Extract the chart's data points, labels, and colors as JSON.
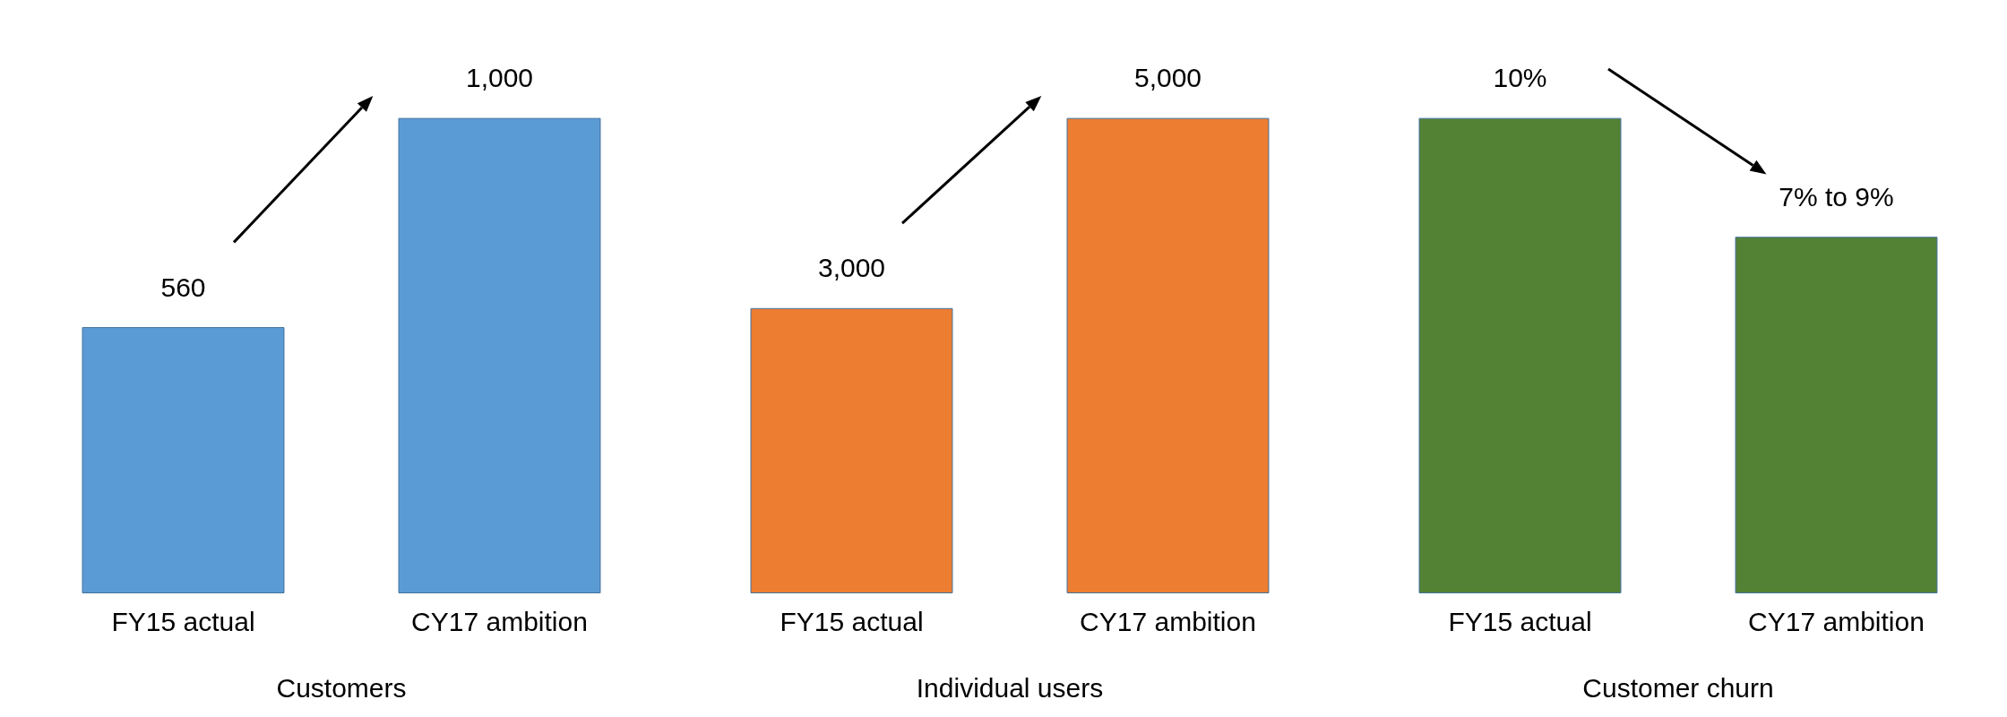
{
  "chart_data": [
    {
      "type": "bar",
      "xlabel": "Customers",
      "categories": [
        "FY15 actual",
        "CY17 ambition"
      ],
      "values": [
        560,
        1000
      ],
      "color": "#5b9bd5",
      "value_labels": [
        "560",
        "1,000"
      ]
    },
    {
      "type": "bar",
      "xlabel": "Individual users",
      "categories": [
        "FY15 actual",
        "CY17 ambition"
      ],
      "values": [
        3000,
        5000
      ],
      "color": "#ed7d31",
      "value_labels": [
        "3,000",
        "5,000"
      ]
    },
    {
      "type": "bar",
      "xlabel": "Customer churn",
      "categories": [
        "FY15 actual",
        "CY17 ambition"
      ],
      "values": [
        10,
        7.5
      ],
      "color": "#548235",
      "value_labels": [
        "10%",
        "7% to 9%"
      ]
    }
  ]
}
